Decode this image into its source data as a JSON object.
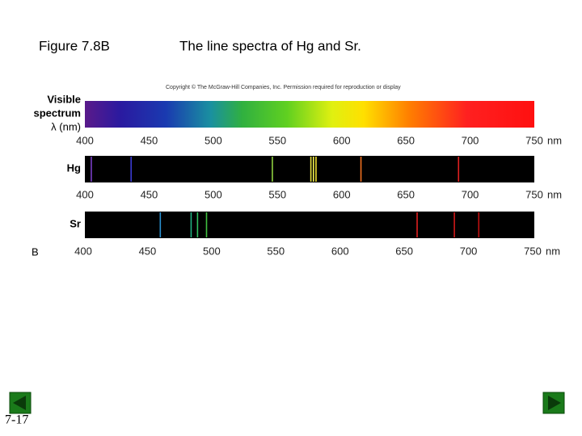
{
  "header": {
    "figure": "Figure 7.8B",
    "title": "The line spectra of Hg and Sr."
  },
  "copyright": "Copyright © The McGraw-Hill Companies, Inc. Permission required for reproduction or display",
  "panel_label": "B",
  "page_number": "7-17",
  "axis": {
    "xlim": [
      400,
      750
    ],
    "xticks": [
      400,
      450,
      500,
      550,
      600,
      650,
      700,
      750
    ],
    "unit": "nm"
  },
  "visible": {
    "label": [
      "Visible",
      "spectrum",
      "λ (nm)"
    ]
  },
  "hg": {
    "label": "Hg",
    "lines": [
      {
        "wavelength": 405,
        "color": "#7a3fc8"
      },
      {
        "wavelength": 436,
        "color": "#3a3ad0"
      },
      {
        "wavelength": 546,
        "color": "#8fd040"
      },
      {
        "wavelength": 576,
        "color": "#e8e040"
      },
      {
        "wavelength": 578,
        "color": "#f0f050"
      },
      {
        "wavelength": 580,
        "color": "#f0e030"
      },
      {
        "wavelength": 615,
        "color": "#f07020"
      },
      {
        "wavelength": 691,
        "color": "#e02020"
      }
    ]
  },
  "sr": {
    "label": "Sr",
    "lines": [
      {
        "wavelength": 460,
        "color": "#2a90d0"
      },
      {
        "wavelength": 484,
        "color": "#20b080"
      },
      {
        "wavelength": 489,
        "color": "#30c060"
      },
      {
        "wavelength": 496,
        "color": "#40c040"
      },
      {
        "wavelength": 660,
        "color": "#e02020"
      },
      {
        "wavelength": 689,
        "color": "#d01818"
      },
      {
        "wavelength": 708,
        "color": "#c01010"
      }
    ]
  }
}
